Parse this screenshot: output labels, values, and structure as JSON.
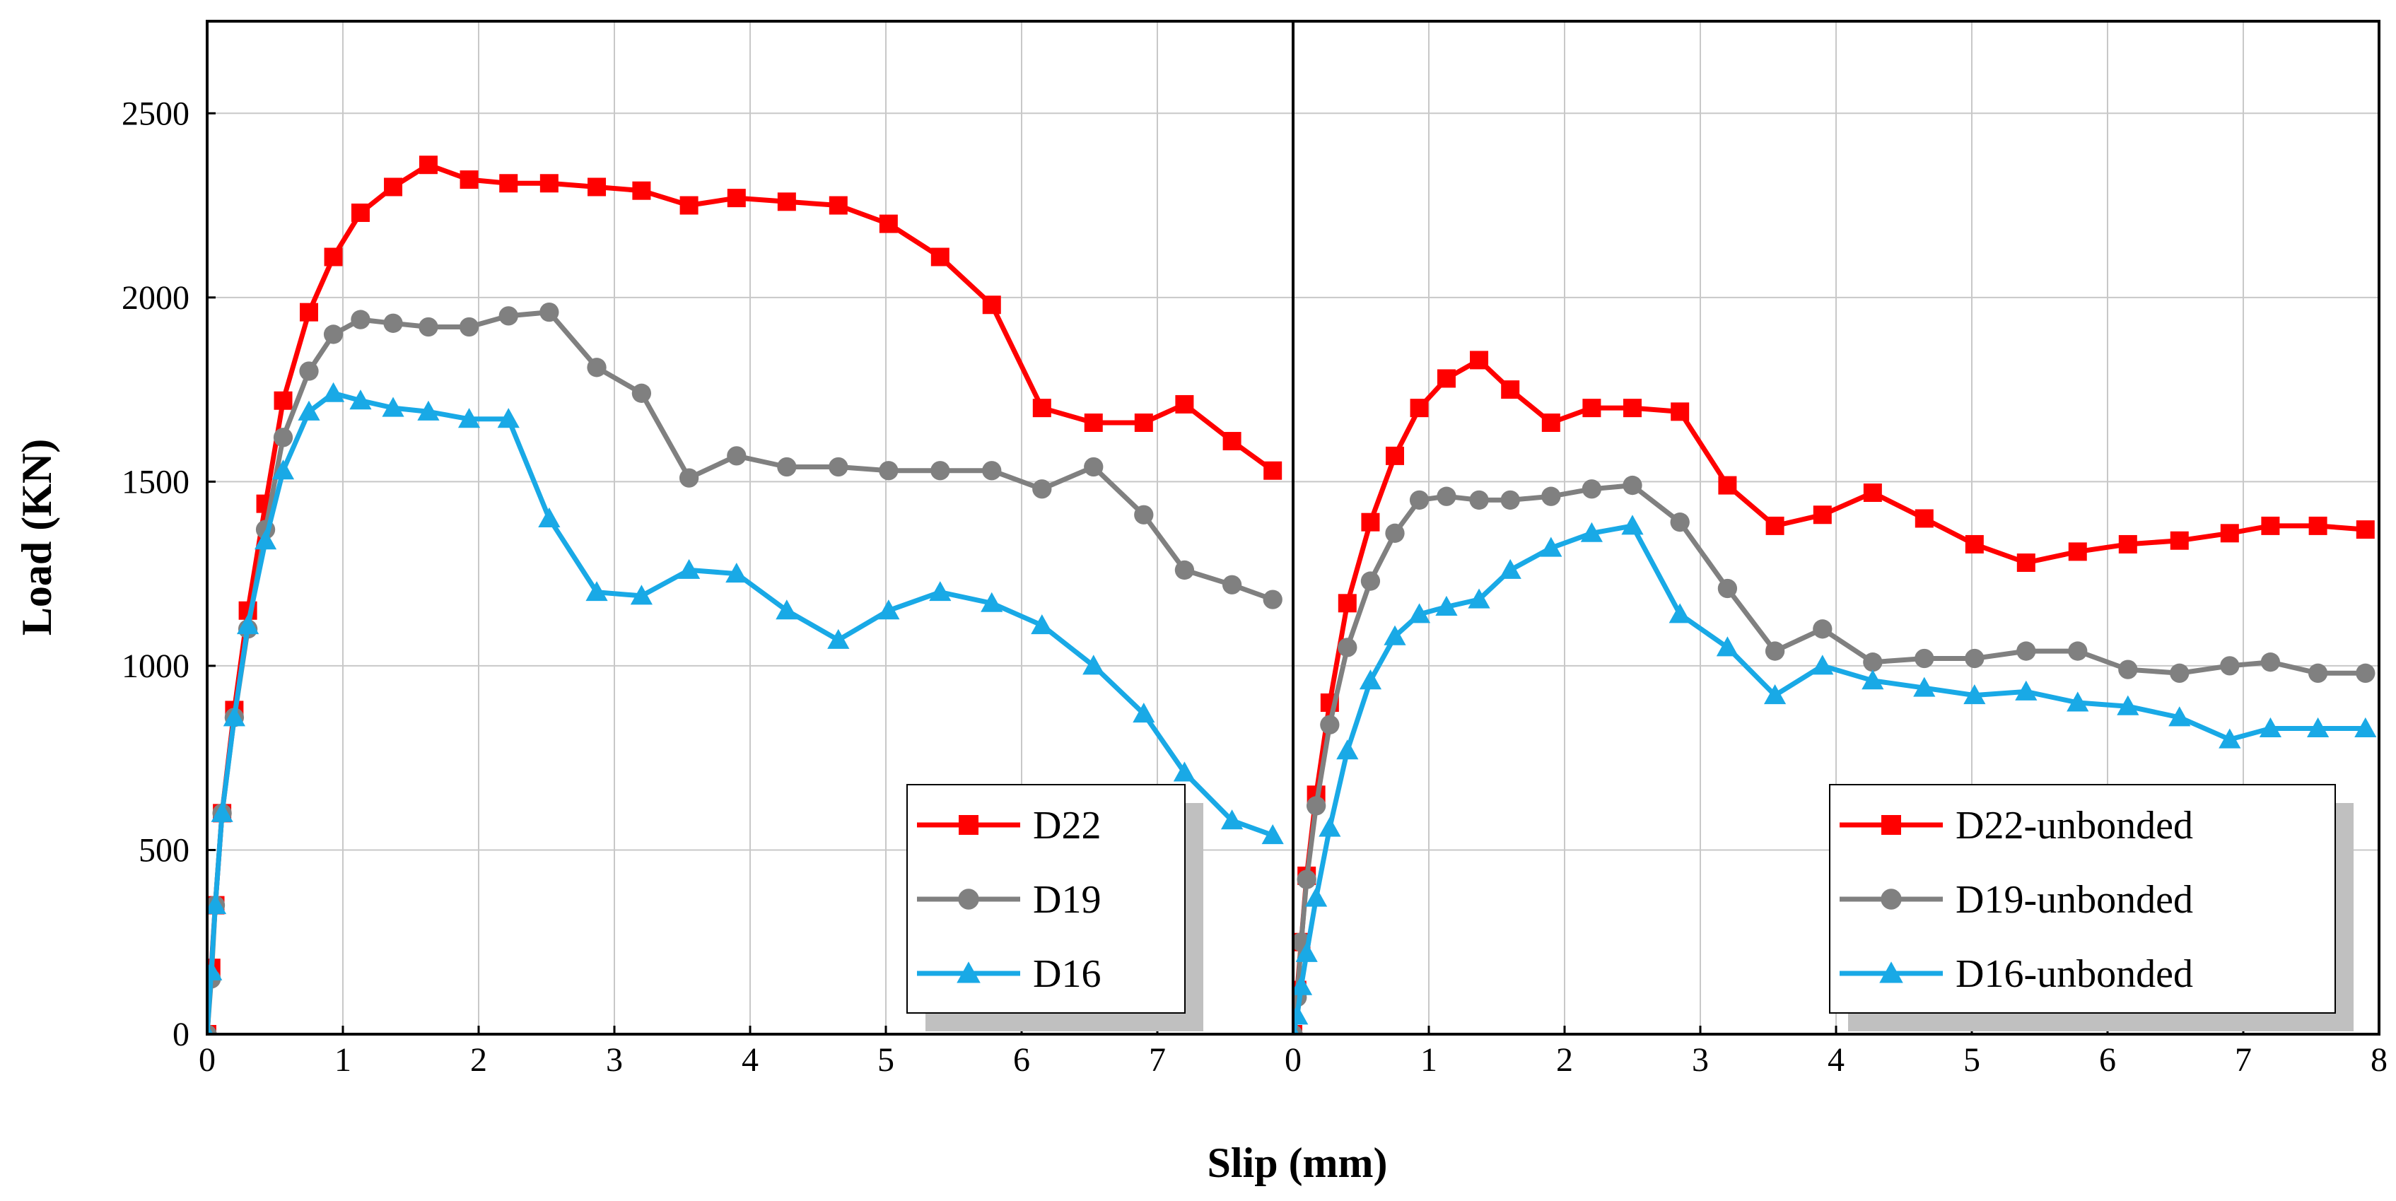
{
  "chart_data": {
    "type": "line",
    "ylabel": "Load (KN)",
    "xlabel": "Slip (mm)",
    "ylim": [
      0,
      2750
    ],
    "yticks": [
      0,
      500,
      1000,
      1500,
      2000,
      2500
    ],
    "grid": true,
    "panels": [
      {
        "xlim": [
          0,
          8
        ],
        "xticks": [
          0,
          1,
          2,
          3,
          4,
          5,
          6,
          7
        ],
        "legend_position": "bottom-right",
        "series": [
          {
            "name": "D22",
            "color": "#ff0000",
            "marker": "square",
            "x": [
              0,
              0.03,
              0.06,
              0.11,
              0.2,
              0.3,
              0.43,
              0.56,
              0.75,
              0.93,
              1.13,
              1.37,
              1.63,
              1.93,
              2.22,
              2.52,
              2.87,
              3.2,
              3.55,
              3.9,
              4.27,
              4.65,
              5.02,
              5.4,
              5.78,
              6.15,
              6.53,
              6.9,
              7.2,
              7.55,
              7.85
            ],
            "y": [
              0,
              180,
              350,
              600,
              880,
              1150,
              1440,
              1720,
              1960,
              2110,
              2230,
              2300,
              2360,
              2320,
              2310,
              2310,
              2300,
              2290,
              2250,
              2270,
              2260,
              2250,
              2200,
              2110,
              1980,
              1700,
              1660,
              1660,
              1710,
              1610,
              1530
            ]
          },
          {
            "name": "D19",
            "color": "#808080",
            "marker": "circle",
            "x": [
              0,
              0.03,
              0.06,
              0.11,
              0.2,
              0.3,
              0.43,
              0.56,
              0.75,
              0.93,
              1.13,
              1.37,
              1.63,
              1.93,
              2.22,
              2.52,
              2.87,
              3.2,
              3.55,
              3.9,
              4.27,
              4.65,
              5.02,
              5.4,
              5.78,
              6.15,
              6.53,
              6.9,
              7.2,
              7.55,
              7.85
            ],
            "y": [
              0,
              150,
              350,
              600,
              860,
              1100,
              1370,
              1620,
              1800,
              1900,
              1940,
              1930,
              1920,
              1920,
              1950,
              1960,
              1810,
              1740,
              1510,
              1570,
              1540,
              1540,
              1530,
              1530,
              1530,
              1480,
              1540,
              1410,
              1260,
              1220,
              1180
            ]
          },
          {
            "name": "D16",
            "color": "#19a9e6",
            "marker": "triangle",
            "x": [
              0,
              0.03,
              0.06,
              0.11,
              0.2,
              0.3,
              0.43,
              0.56,
              0.75,
              0.93,
              1.13,
              1.37,
              1.63,
              1.93,
              2.22,
              2.52,
              2.87,
              3.2,
              3.55,
              3.9,
              4.27,
              4.65,
              5.02,
              5.4,
              5.78,
              6.15,
              6.53,
              6.9,
              7.2,
              7.55,
              7.85
            ],
            "y": [
              0,
              170,
              350,
              600,
              860,
              1110,
              1340,
              1530,
              1690,
              1740,
              1720,
              1700,
              1690,
              1670,
              1670,
              1400,
              1200,
              1190,
              1260,
              1250,
              1150,
              1070,
              1150,
              1200,
              1170,
              1110,
              1000,
              870,
              710,
              580,
              540
            ]
          }
        ]
      },
      {
        "xlim": [
          0,
          8
        ],
        "xticks": [
          0,
          1,
          2,
          3,
          4,
          5,
          6,
          7,
          8
        ],
        "legend_position": "bottom-right",
        "series": [
          {
            "name": "D22-unbonded",
            "color": "#ff0000",
            "marker": "square",
            "x": [
              0,
              0.03,
              0.06,
              0.1,
              0.17,
              0.27,
              0.4,
              0.57,
              0.75,
              0.93,
              1.13,
              1.37,
              1.6,
              1.9,
              2.2,
              2.5,
              2.85,
              3.2,
              3.55,
              3.9,
              4.27,
              4.65,
              5.02,
              5.4,
              5.78,
              6.15,
              6.53,
              6.9,
              7.2,
              7.55,
              7.9
            ],
            "y": [
              0,
              120,
              250,
              430,
              650,
              900,
              1170,
              1390,
              1570,
              1700,
              1780,
              1830,
              1750,
              1660,
              1700,
              1700,
              1690,
              1490,
              1380,
              1410,
              1470,
              1400,
              1330,
              1280,
              1310,
              1330,
              1340,
              1360,
              1380,
              1380,
              1370
            ]
          },
          {
            "name": "D19-unbonded",
            "color": "#808080",
            "marker": "circle",
            "x": [
              0,
              0.03,
              0.06,
              0.1,
              0.17,
              0.27,
              0.4,
              0.57,
              0.75,
              0.93,
              1.13,
              1.37,
              1.6,
              1.9,
              2.2,
              2.5,
              2.85,
              3.2,
              3.55,
              3.9,
              4.27,
              4.65,
              5.02,
              5.4,
              5.78,
              6.15,
              6.53,
              6.9,
              7.2,
              7.55,
              7.9
            ],
            "y": [
              0,
              100,
              250,
              420,
              620,
              840,
              1050,
              1230,
              1360,
              1450,
              1460,
              1450,
              1450,
              1460,
              1480,
              1490,
              1390,
              1210,
              1040,
              1100,
              1010,
              1020,
              1020,
              1040,
              1040,
              990,
              980,
              1000,
              1010,
              980,
              980
            ]
          },
          {
            "name": "D16-unbonded",
            "color": "#19a9e6",
            "marker": "triangle",
            "x": [
              0,
              0.03,
              0.06,
              0.1,
              0.17,
              0.27,
              0.4,
              0.57,
              0.75,
              0.93,
              1.13,
              1.37,
              1.6,
              1.9,
              2.2,
              2.5,
              2.85,
              3.2,
              3.55,
              3.9,
              4.27,
              4.65,
              5.02,
              5.4,
              5.78,
              6.15,
              6.53,
              6.9,
              7.2,
              7.55,
              7.9
            ],
            "y": [
              0,
              50,
              130,
              220,
              370,
              560,
              770,
              960,
              1080,
              1140,
              1160,
              1180,
              1260,
              1320,
              1360,
              1380,
              1140,
              1050,
              920,
              1000,
              960,
              940,
              920,
              930,
              900,
              890,
              860,
              800,
              830,
              830,
              830
            ]
          }
        ]
      }
    ]
  }
}
